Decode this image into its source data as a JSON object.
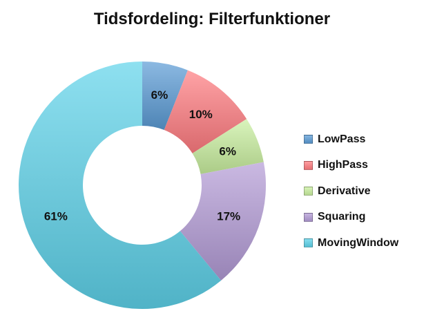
{
  "chart_data": {
    "type": "pie",
    "title": "Tidsfordeling: Filterfunktioner",
    "donut": true,
    "categories": [
      "LowPass",
      "HighPass",
      "Derivative",
      "Squaring",
      "MovingWindow"
    ],
    "values": [
      6,
      10,
      6,
      17,
      61
    ],
    "value_labels": [
      "6%",
      "10%",
      "6%",
      "17%",
      "61%"
    ],
    "colors": [
      "#5b9bd5",
      "#ff7c80",
      "#c9ef9f",
      "#b39bd6",
      "#5ed3ea"
    ],
    "legend_position": "right"
  }
}
